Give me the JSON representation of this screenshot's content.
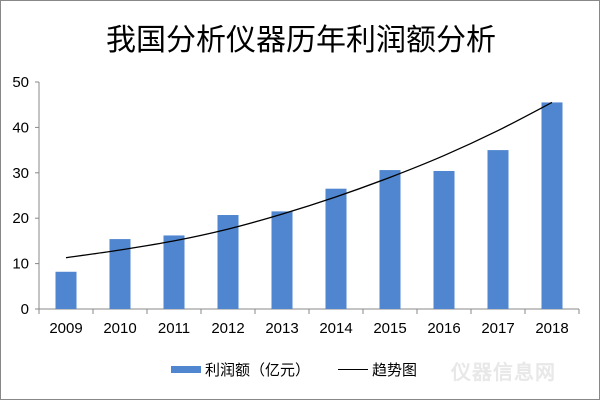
{
  "chart_data": {
    "type": "bar",
    "title": "我国分析仪器历年利润额分析",
    "categories": [
      "2009",
      "2010",
      "2011",
      "2012",
      "2013",
      "2014",
      "2015",
      "2016",
      "2017",
      "2018"
    ],
    "series": [
      {
        "name": "利润额（亿元）",
        "type": "bar",
        "color": "#4f86cf",
        "values": [
          8.2,
          15.4,
          16.2,
          20.7,
          21.5,
          26.5,
          30.6,
          30.4,
          35.0,
          45.5
        ]
      },
      {
        "name": "趋势图",
        "type": "line",
        "color": "#000000",
        "values": [
          11.3,
          13.0,
          15.0,
          17.6,
          20.9,
          24.7,
          29.0,
          33.8,
          39.3,
          45.5
        ]
      }
    ],
    "ylim": [
      0,
      50
    ],
    "yticks": [
      "0",
      "10",
      "20",
      "30",
      "40",
      "50"
    ],
    "grid": false,
    "legend": "bottom"
  },
  "watermark": "仪器信息网"
}
